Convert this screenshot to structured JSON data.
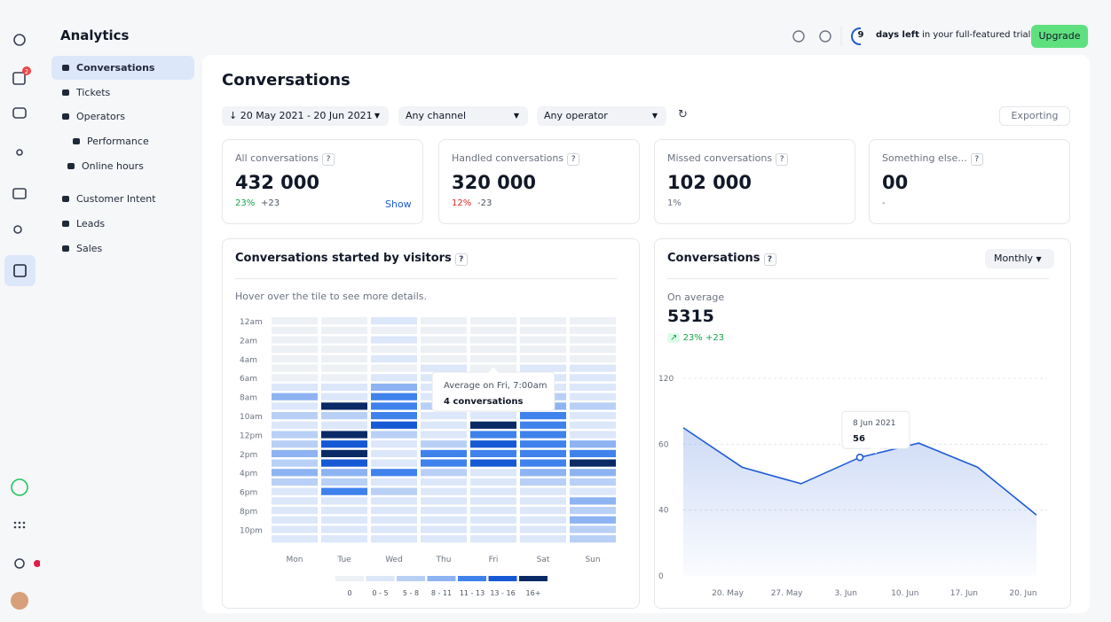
{
  "header": {
    "title": "Analytics",
    "trial_days": "9",
    "trial_bold": "days left",
    "trial_text": "in your full-featured trial",
    "upgrade": "Upgrade",
    "badge": "2"
  },
  "sidebar": {
    "items": [
      "Conversations",
      "Tickets",
      "Operators",
      "Performance",
      "Online hours",
      "Customer Intent",
      "Leads",
      "Sales"
    ]
  },
  "page": {
    "title": "Conversations",
    "filters": [
      "20 May 2021 - 20 Jun 2021",
      "Any channel",
      "Any operator"
    ],
    "export": "Exporting",
    "help": "?"
  },
  "stats": [
    {
      "label": "All conversations",
      "value": "432 000",
      "pct": "23%",
      "delta": "+23",
      "link": "Show"
    },
    {
      "label": "Handled conversations",
      "value": "320 000",
      "pct": "12%",
      "delta": "-23"
    },
    {
      "label": "Missed conversations",
      "value": "102 000",
      "pct": "1%"
    },
    {
      "label": "Something else...",
      "value": "00",
      "pct": "-"
    }
  ],
  "heatmap": {
    "title": "Conversations started by visitors",
    "hint": "Hover over the tile to see more details.",
    "row_labels": [
      "12am",
      "2am",
      "4am",
      "6am",
      "8am",
      "10am",
      "12pm",
      "2pm",
      "4pm",
      "6pm",
      "8pm",
      "10pm"
    ],
    "columns": [
      "Mon",
      "Tue",
      "Wed",
      "Thu",
      "Fri",
      "Sat",
      "Sun"
    ],
    "colors": [
      "#edf0f5",
      "#dde7fa",
      "#b9d0f6",
      "#8db3f2",
      "#3f82ec",
      "#1659d4",
      "#0a2a66"
    ],
    "legend": [
      "0",
      "0 - 5",
      "5 - 8",
      "8 - 11",
      "11 - 13",
      "13 - 16",
      "16+"
    ],
    "tooltip": {
      "title": "Average on Fri, 7:00am",
      "value": "4 conversations"
    },
    "levels": [
      [
        0,
        0,
        1,
        0,
        0,
        0,
        0
      ],
      [
        0,
        0,
        0,
        0,
        0,
        0,
        0
      ],
      [
        0,
        0,
        1,
        0,
        0,
        0,
        0
      ],
      [
        0,
        0,
        0,
        0,
        0,
        0,
        0
      ],
      [
        0,
        0,
        1,
        0,
        0,
        0,
        0
      ],
      [
        0,
        0,
        0,
        1,
        0,
        1,
        1
      ],
      [
        0,
        0,
        1,
        1,
        1,
        1,
        1
      ],
      [
        1,
        1,
        3,
        1,
        1,
        1,
        1
      ],
      [
        3,
        1,
        4,
        1,
        1,
        2,
        1
      ],
      [
        1,
        6,
        4,
        2,
        1,
        3,
        2
      ],
      [
        2,
        2,
        4,
        1,
        1,
        4,
        1
      ],
      [
        1,
        1,
        5,
        1,
        6,
        4,
        1
      ],
      [
        2,
        6,
        2,
        1,
        4,
        4,
        1
      ],
      [
        2,
        5,
        1,
        2,
        5,
        4,
        3
      ],
      [
        3,
        6,
        1,
        4,
        4,
        4,
        4
      ],
      [
        2,
        5,
        1,
        4,
        5,
        4,
        6
      ],
      [
        3,
        3,
        4,
        2,
        1,
        3,
        3
      ],
      [
        2,
        2,
        1,
        1,
        1,
        2,
        2
      ],
      [
        1,
        4,
        2,
        1,
        1,
        1,
        1
      ],
      [
        1,
        1,
        1,
        1,
        1,
        1,
        3
      ],
      [
        1,
        1,
        1,
        1,
        1,
        1,
        2
      ],
      [
        1,
        1,
        1,
        1,
        1,
        1,
        3
      ],
      [
        1,
        1,
        1,
        1,
        1,
        1,
        2
      ],
      [
        1,
        1,
        1,
        1,
        1,
        1,
        2
      ]
    ]
  },
  "line_chart": {
    "title": "Conversations",
    "period": "Monthly",
    "avg_label": "On average",
    "avg_value": "5315",
    "pct": "23%",
    "delta": "+23",
    "yticks": [
      0,
      40,
      60,
      120
    ],
    "x_labels": [
      "20. May",
      "27. May",
      "3. Jun",
      "10. Jun",
      "17. Jun",
      "20. Jun"
    ],
    "values": [
      75,
      53,
      48,
      56,
      61,
      53,
      37
    ],
    "color": "#1f5bd6",
    "tooltip_date": "8 Jun 2021"
  }
}
